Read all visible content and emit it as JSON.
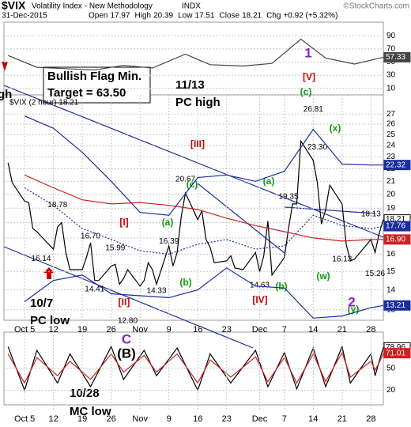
{
  "header": {
    "symbol": "$VIX",
    "name": "Volatility Index - New Methodology",
    "exchange": "INDX",
    "source": "©StockCharts.com",
    "date": "31-Dec-2015",
    "quote": [
      {
        "label": "Open",
        "value": 17.97
      },
      {
        "label": "High",
        "value": 20.39
      },
      {
        "label": "Low",
        "value": 17.51
      },
      {
        "label": "Close",
        "value": 18.21
      },
      {
        "label": "Chg",
        "value": "+0.92 (+5.32%)"
      }
    ]
  },
  "chart_data": [
    {
      "type": "line",
      "panel": "rsi",
      "xlim": [
        "2015-09-30",
        "2015-12-31"
      ],
      "x": [
        "2015-10-01",
        "2015-10-08",
        "2015-10-15",
        "2015-10-22",
        "2015-10-29",
        "2015-11-05",
        "2015-11-13",
        "2015-11-19",
        "2015-11-27",
        "2015-12-04",
        "2015-12-11",
        "2015-12-17",
        "2015-12-24",
        "2015-12-31"
      ],
      "ylim": [
        0,
        100
      ],
      "yticks": [
        10,
        30,
        50,
        70,
        90
      ],
      "grid": true,
      "series": [
        {
          "color": "#444444",
          "values": [
            60,
            42,
            40,
            38,
            45,
            41,
            62,
            46,
            44,
            48,
            85,
            56,
            47,
            57.33
          ]
        }
      ]
    },
    {
      "type": "line",
      "panel": "price",
      "log": true,
      "grid": true,
      "label": "$VIX (2 hour) 18.21",
      "xlim": [
        "2015-09-30",
        "2015-12-31"
      ],
      "xticks": [
        {
          "value": "2015-10-05",
          "label": "Oct 5"
        },
        {
          "value": "2015-10-12",
          "label": "12"
        },
        {
          "value": "2015-10-19",
          "label": "19"
        },
        {
          "value": "2015-10-26",
          "label": "26"
        },
        {
          "value": "2015-11-02",
          "label": "Nov"
        },
        {
          "value": "2015-11-09",
          "label": "9"
        },
        {
          "value": "2015-11-16",
          "label": "16"
        },
        {
          "value": "2015-11-23",
          "label": "23"
        },
        {
          "value": "2015-12-01",
          "label": "Dec"
        },
        {
          "value": "2015-12-07",
          "label": "7"
        },
        {
          "value": "2015-12-14",
          "label": "14"
        },
        {
          "value": "2015-12-21",
          "label": "21"
        },
        {
          "value": "2015-12-28",
          "label": "28"
        }
      ],
      "ylim": [
        12.5,
        29
      ],
      "yticks": [
        13,
        14,
        15,
        16,
        17,
        18,
        19,
        20,
        21,
        22,
        23,
        24,
        25,
        26,
        27
      ],
      "x": [
        "2015-10-01",
        "2015-10-02",
        "2015-10-05",
        "2015-10-06",
        "2015-10-07",
        "2015-10-08",
        "2015-10-09",
        "2015-10-12",
        "2015-10-13",
        "2015-10-14",
        "2015-10-15",
        "2015-10-16",
        "2015-10-19",
        "2015-10-20",
        "2015-10-21",
        "2015-10-22",
        "2015-10-23",
        "2015-10-26",
        "2015-10-27",
        "2015-10-28",
        "2015-10-29",
        "2015-10-30",
        "2015-11-02",
        "2015-11-03",
        "2015-11-04",
        "2015-11-05",
        "2015-11-06",
        "2015-11-09",
        "2015-11-10",
        "2015-11-11",
        "2015-11-12",
        "2015-11-13",
        "2015-11-16",
        "2015-11-17",
        "2015-11-18",
        "2015-11-19",
        "2015-11-20",
        "2015-11-23",
        "2015-11-24",
        "2015-11-25",
        "2015-11-27",
        "2015-11-30",
        "2015-12-01",
        "2015-12-02",
        "2015-12-03",
        "2015-12-04",
        "2015-12-07",
        "2015-12-08",
        "2015-12-09",
        "2015-12-10",
        "2015-12-11",
        "2015-12-14",
        "2015-12-15",
        "2015-12-16",
        "2015-12-17",
        "2015-12-18",
        "2015-12-21",
        "2015-12-22",
        "2015-12-23",
        "2015-12-24",
        "2015-12-28",
        "2015-12-29",
        "2015-12-30",
        "2015-12-31"
      ],
      "series": [
        {
          "color": "#000000",
          "values": [
            22.5,
            20.9,
            19.5,
            19.4,
            17.6,
            17.4,
            17.1,
            16.3,
            17.7,
            18.0,
            16.1,
            15.1,
            15.1,
            15.8,
            16.7,
            14.5,
            14.5,
            15.3,
            15.4,
            14.3,
            14.6,
            15.1,
            14.2,
            14.5,
            15.5,
            15.1,
            14.3,
            16.5,
            15.3,
            16.1,
            18.4,
            20.1,
            18.2,
            18.8,
            16.9,
            16.4,
            15.5,
            15.6,
            15.9,
            15.2,
            15.1,
            16.1,
            15.0,
            15.9,
            18.1,
            14.8,
            15.8,
            17.6,
            19.3,
            19.3,
            24.4,
            22.7,
            20.9,
            17.9,
            18.9,
            20.7,
            19.3,
            16.6,
            15.6,
            15.7,
            16.9,
            16.1,
            17.3,
            18.21
          ]
        }
      ],
      "pivots": [
        {
          "x": "2015-10-13",
          "value": 18.78
        },
        {
          "x": "2015-10-21",
          "value": 16.7,
          "label": "16.70"
        },
        {
          "x": "2015-10-27",
          "value": 15.99
        },
        {
          "x": "2015-10-09",
          "value": 16.14
        },
        {
          "x": "2015-10-22",
          "value": 14.41
        },
        {
          "x": "2015-10-30",
          "value": 12.8,
          "label": "12.80"
        },
        {
          "x": "2015-11-09",
          "value": 16.39
        },
        {
          "x": "2015-11-06",
          "value": 14.33
        },
        {
          "x": "2015-11-13",
          "value": 20.67
        },
        {
          "x": "2015-12-08",
          "value": 19.35
        },
        {
          "x": "2015-12-01",
          "value": 14.63
        },
        {
          "x": "2015-12-14",
          "value": 26.81
        },
        {
          "x": "2015-12-15",
          "value": 23.3,
          "label": "23.30"
        },
        {
          "x": "2015-12-21",
          "value": 16.13
        },
        {
          "x": "2015-12-28",
          "value": 18.13
        },
        {
          "x": "2015-12-29",
          "value": 15.26
        }
      ],
      "annotations": [
        {
          "text": "[I]",
          "color": "#cc0000"
        },
        {
          "text": "[II]",
          "color": "#cc0000"
        },
        {
          "text": "[III]",
          "color": "#cc0000"
        },
        {
          "text": "[IV]",
          "color": "#cc0000"
        },
        {
          "text": "[V]",
          "color": "#cc0000"
        },
        {
          "text": "(a)",
          "color": "#119911"
        },
        {
          "text": "(b)",
          "color": "#119911"
        },
        {
          "text": "(c)",
          "color": "#119911"
        },
        {
          "text": "(a)",
          "color": "#119911"
        },
        {
          "text": "(b)",
          "color": "#119911"
        },
        {
          "text": "(c)",
          "color": "#119911"
        },
        {
          "text": "(x)",
          "color": "#119911"
        },
        {
          "text": "(w)",
          "color": "#119911"
        },
        {
          "text": "(y)",
          "color": "#119911"
        },
        {
          "text": "1",
          "color": "#8a1fc9"
        },
        {
          "text": "2",
          "color": "#8a1fc9"
        },
        {
          "text": "C",
          "color": "#8a1fc9"
        },
        {
          "text": "(B)",
          "color": "#000000"
        }
      ],
      "notes": [
        "Bullish Flag Min.",
        "Target = 63.50",
        "11/13",
        "PC high",
        "10/7",
        "PC low",
        "10/28",
        "MC low",
        "gh"
      ]
    },
    {
      "type": "line",
      "panel": "price",
      "log": true,
      "xlim": [
        "2015-09-30",
        "2015-12-31"
      ],
      "ylim": [
        12.5,
        29
      ],
      "x": [
        "2015-10-05",
        "2015-10-12",
        "2015-10-19",
        "2015-10-26",
        "2015-11-02",
        "2015-11-09",
        "2015-11-16",
        "2015-11-23",
        "2015-11-30",
        "2015-12-07",
        "2015-12-14",
        "2015-12-21",
        "2015-12-28",
        "2015-12-31"
      ],
      "series": [
        {
          "color": "#cc2222",
          "values": [
            21.5,
            20.5,
            19.6,
            19.3,
            19.4,
            19.2,
            18.9,
            18.3,
            17.8,
            17.4,
            17.0,
            16.8,
            16.9,
            16.9
          ],
          "value_labels": [
            null,
            null,
            null,
            null,
            null,
            null,
            null,
            null,
            null,
            null,
            null,
            null,
            null,
            "16.90"
          ]
        },
        {
          "color": "#1a2e9e",
          "values": [
            26.8,
            25.6,
            23.4,
            21.0,
            18.7,
            18.5,
            21.3,
            21.5,
            21.0,
            21.8,
            25.5,
            22.4,
            22.32,
            22.32
          ]
        },
        {
          "color": "#1a2e9e",
          "values": [
            13.4,
            14.5,
            14.8,
            13.8,
            13.7,
            13.6,
            14.0,
            15.2,
            14.2,
            14.1,
            12.6,
            12.7,
            13.1,
            13.21
          ]
        },
        {
          "color": "#1a2e9e",
          "dashed": true,
          "values": [
            20.5,
            19.2,
            17.6,
            16.9,
            16.2,
            16.0,
            16.6,
            16.9,
            16.3,
            16.5,
            18.5,
            17.8,
            17.6,
            17.76
          ]
        }
      ]
    },
    {
      "type": "line",
      "panel": "stoch",
      "xlim": [
        "2015-09-30",
        "2015-12-31"
      ],
      "ylim": [
        0,
        100
      ],
      "yticks": [
        20,
        50
      ],
      "grid": true,
      "x": [
        "2015-10-01",
        "2015-10-05",
        "2015-10-08",
        "2015-10-13",
        "2015-10-16",
        "2015-10-21",
        "2015-10-26",
        "2015-10-29",
        "2015-11-03",
        "2015-11-06",
        "2015-11-11",
        "2015-11-16",
        "2015-11-19",
        "2015-11-24",
        "2015-11-30",
        "2015-12-03",
        "2015-12-07",
        "2015-12-10",
        "2015-12-14",
        "2015-12-17",
        "2015-12-21",
        "2015-12-23",
        "2015-12-28",
        "2015-12-29",
        "2015-12-30",
        "2015-12-31"
      ],
      "series": [
        {
          "color": "#000000",
          "values": [
            80,
            20,
            75,
            30,
            70,
            25,
            80,
            35,
            75,
            40,
            78,
            20,
            70,
            30,
            75,
            25,
            72,
            22,
            78,
            25,
            80,
            30,
            70,
            40,
            60,
            78.96
          ]
        },
        {
          "color": "#cc2222",
          "values": [
            70,
            30,
            65,
            40,
            60,
            35,
            70,
            45,
            68,
            45,
            70,
            30,
            62,
            38,
            66,
            32,
            65,
            30,
            70,
            32,
            72,
            38,
            60,
            48,
            58,
            71.01
          ]
        }
      ]
    }
  ]
}
